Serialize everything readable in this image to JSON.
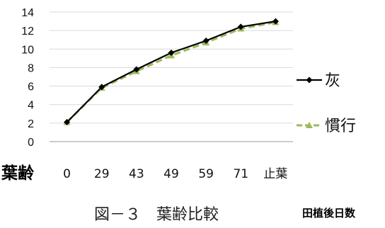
{
  "chart_data": {
    "type": "line",
    "categories": [
      "0",
      "29",
      "43",
      "49",
      "59",
      "71",
      "止葉"
    ],
    "series": [
      {
        "name": "灰",
        "values": [
          2.1,
          5.9,
          7.8,
          9.6,
          10.9,
          12.4,
          13.0
        ],
        "color": "#000000",
        "marker": "diamond",
        "dash": "solid"
      },
      {
        "name": "慣行",
        "values": [
          2.1,
          5.8,
          7.6,
          9.3,
          10.7,
          12.2,
          12.9
        ],
        "color": "#9bbb59",
        "marker": "triangle",
        "dash": "dashed"
      }
    ],
    "ylim": [
      0,
      14
    ],
    "yticks": [
      0,
      2,
      4,
      6,
      8,
      10,
      12,
      14
    ],
    "ylabel": "葉齢",
    "xlabel": "田植後日数",
    "grid": "horizontal",
    "legend": "right"
  },
  "caption": "図－３　葉齢比較"
}
